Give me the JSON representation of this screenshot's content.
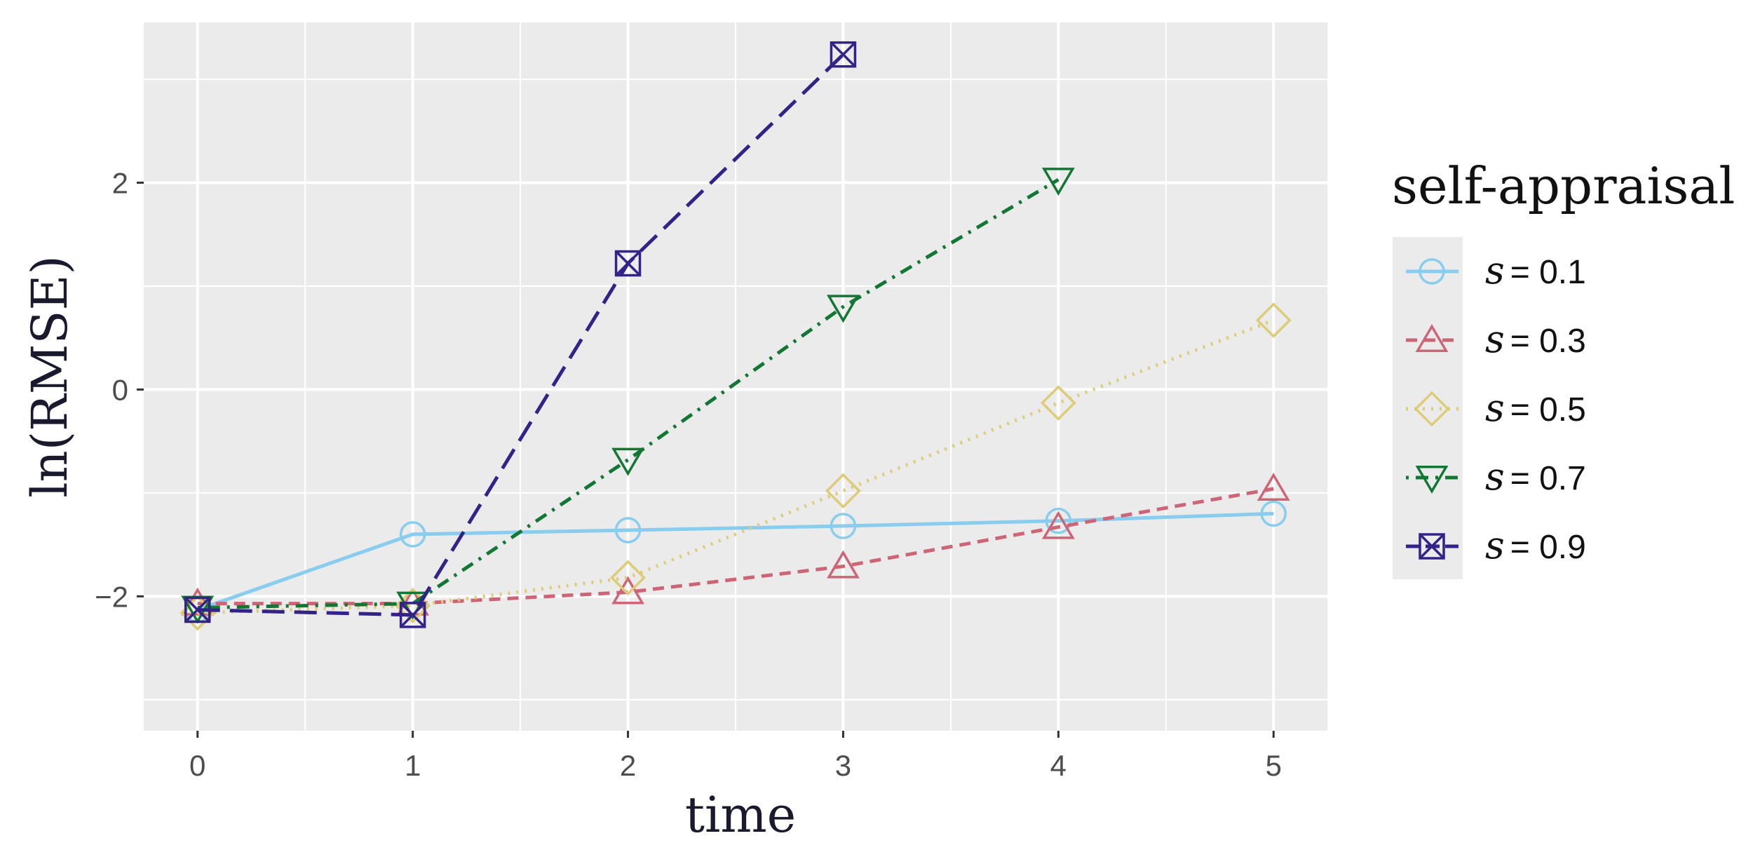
{
  "chart_data": {
    "type": "line",
    "xlabel": "time",
    "ylabel": "ln(RMSE)",
    "xlim": [
      -0.25,
      5.25
    ],
    "ylim": [
      -3.3,
      3.55
    ],
    "x_ticks": [
      0,
      1,
      2,
      3,
      4,
      5
    ],
    "y_ticks": [
      -2,
      0,
      2
    ],
    "y_tick_labels": [
      "−2",
      "0",
      "2"
    ],
    "grid": true,
    "legend": {
      "title": "self-appraisal",
      "placement": "right",
      "symbol_text": "s",
      "entries": [
        "= 0.1",
        "= 0.3",
        "= 0.5",
        "= 0.7",
        "= 0.9"
      ]
    },
    "series": [
      {
        "label": "0.1",
        "color": "#88ccee",
        "dash": "solid",
        "marker": "circle",
        "x": [
          0,
          1,
          2,
          3,
          4,
          5
        ],
        "y": [
          -2.13,
          -1.4,
          -1.36,
          -1.32,
          -1.27,
          -1.2
        ]
      },
      {
        "label": "0.3",
        "color": "#cc6677",
        "dash": "dashed",
        "marker": "triangle",
        "x": [
          0,
          1,
          2,
          3,
          4,
          5
        ],
        "y": [
          -2.07,
          -2.07,
          -1.96,
          -1.71,
          -1.33,
          -0.96
        ]
      },
      {
        "label": "0.5",
        "color": "#ddcc77",
        "dash": "dotted",
        "marker": "diamond",
        "x": [
          0,
          1,
          2,
          3,
          4,
          5
        ],
        "y": [
          -2.16,
          -2.09,
          -1.82,
          -0.98,
          -0.13,
          0.67
        ]
      },
      {
        "label": "0.7",
        "color": "#117733",
        "dash": "dotdash",
        "marker": "triangle-down",
        "x": [
          0,
          1,
          2,
          3,
          4
        ],
        "y": [
          -2.11,
          -2.07,
          -0.68,
          0.8,
          2.03
        ]
      },
      {
        "label": "0.9",
        "color": "#332288",
        "dash": "longdash",
        "marker": "boxcross",
        "x": [
          0,
          1,
          2,
          3
        ],
        "y": [
          -2.13,
          -2.18,
          1.22,
          3.24
        ]
      }
    ]
  }
}
